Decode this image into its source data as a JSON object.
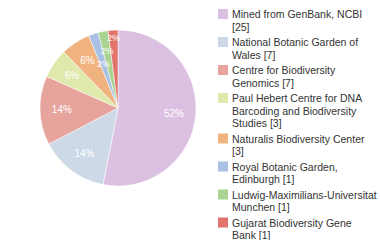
{
  "chart_data": {
    "type": "pie",
    "categories": [
      "Mined from GenBank, NCBI [25]",
      "National Botanic Garden of Wales [7]",
      "Centre for Biodiversity Genomics [7]",
      "Paul Hebert Centre for DNA Barcoding and Biodiversity Studies [3]",
      "Naturalis Biodiversity Center [3]",
      "Royal Botanic Garden, Edinburgh [1]",
      "Ludwig-Maximilians-Universitat Munchen [1]",
      "Gujarat Biodiversity Gene Bank [1]"
    ],
    "values": [
      52,
      14,
      14,
      6,
      6,
      2,
      2,
      2
    ],
    "value_labels": [
      "52%",
      "14%",
      "14%",
      "6%",
      "6%",
      "2%",
      "2%",
      "2%"
    ],
    "colors": [
      "#dcc0e2",
      "#cdd9e7",
      "#e6a49d",
      "#dfe9ab",
      "#f0b37f",
      "#a9c1e2",
      "#aad291",
      "#e1736b"
    ],
    "data_labels": true,
    "legend": "right"
  }
}
